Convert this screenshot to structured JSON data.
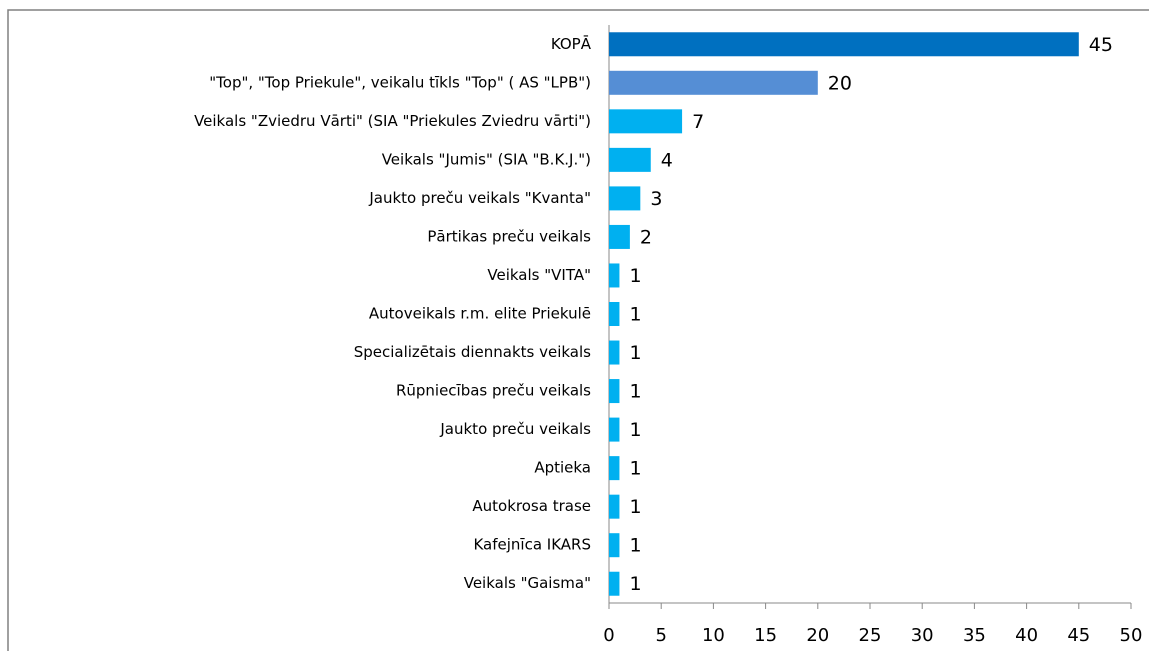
{
  "chart_data": {
    "type": "barh",
    "categories": [
      "KOPĀ",
      "\"Top\", \"Top Priekule\", veikalu tīkls \"Top\" ( AS \"LPB\")",
      "Veikals \"Zviedru Vārti\" (SIA \"Priekules Zviedru vārti\")",
      "Veikals \"Jumis\" (SIA \"B.K.J.\")",
      "Jaukto preču veikals \"Kvanta\"",
      "Pārtikas preču veikals",
      "Veikals \"VITA\"",
      "Autoveikals r.m. elite Priekulē",
      "Specializētais diennakts veikals",
      "Rūpniecības preču veikals",
      "Jaukto preču veikals",
      "Aptieka",
      "Autokrosa trase",
      "Kafejnīca IKARS",
      "Veikals \"Gaisma\""
    ],
    "values": [
      45,
      20,
      7,
      4,
      3,
      2,
      1,
      1,
      1,
      1,
      1,
      1,
      1,
      1,
      1
    ],
    "colors": [
      "#0070c0",
      "#558ed5",
      "#00b0f0",
      "#00b0f0",
      "#00b0f0",
      "#00b0f0",
      "#00b0f0",
      "#00b0f0",
      "#00b0f0",
      "#00b0f0",
      "#00b0f0",
      "#00b0f0",
      "#00b0f0",
      "#00b0f0",
      "#00b0f0"
    ],
    "xlim": [
      0,
      50
    ],
    "xticks": [
      0,
      5,
      10,
      15,
      20,
      25,
      30,
      35,
      40,
      45,
      50
    ],
    "grid": false
  }
}
